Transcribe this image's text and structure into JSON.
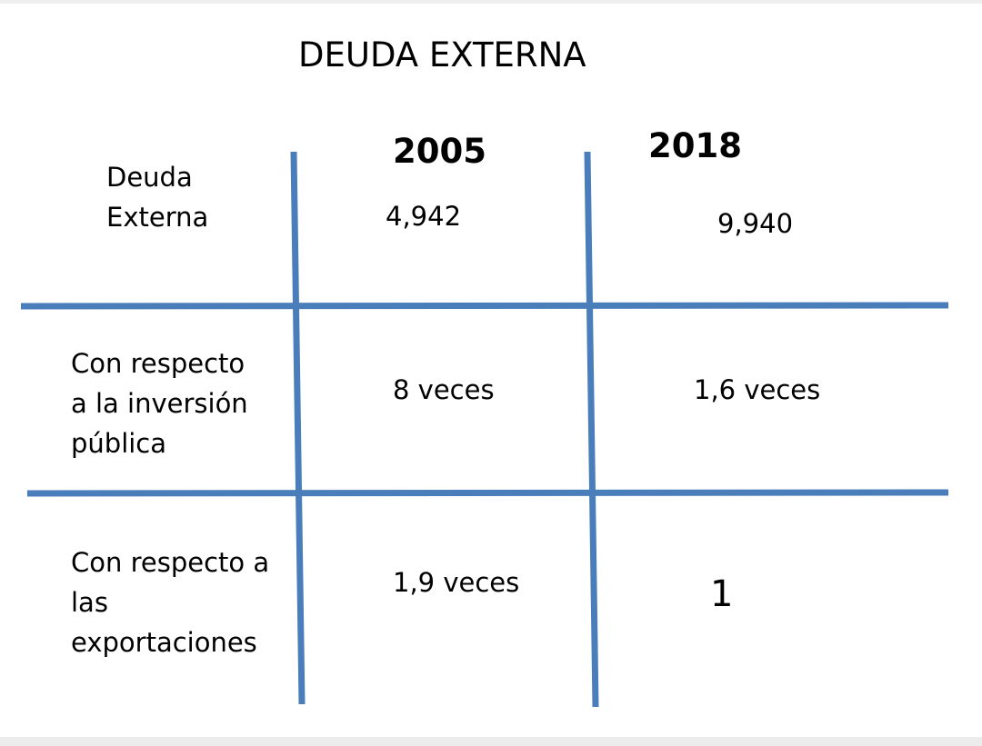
{
  "title": "DEUDA EXTERNA",
  "table": {
    "columns": [
      "2005",
      "2018"
    ],
    "rows": [
      {
        "label": "Deuda Externa",
        "label_lines": [
          "Deuda",
          "Externa"
        ],
        "values": [
          "4,942",
          "9,940"
        ]
      },
      {
        "label": "Con respecto a la inversión pública",
        "label_lines": [
          "Con respecto",
          "a la inversión",
          "pública"
        ],
        "values": [
          "8 veces",
          "1,6 veces"
        ]
      },
      {
        "label": "Con respecto a las exportaciones",
        "label_lines": [
          "Con respecto a",
          "las",
          "exportaciones"
        ],
        "values": [
          "1,9 veces",
          "1"
        ]
      }
    ]
  },
  "colors": {
    "grid_line": "#4a7ebb",
    "text": "#000000",
    "background": "#ffffff"
  }
}
